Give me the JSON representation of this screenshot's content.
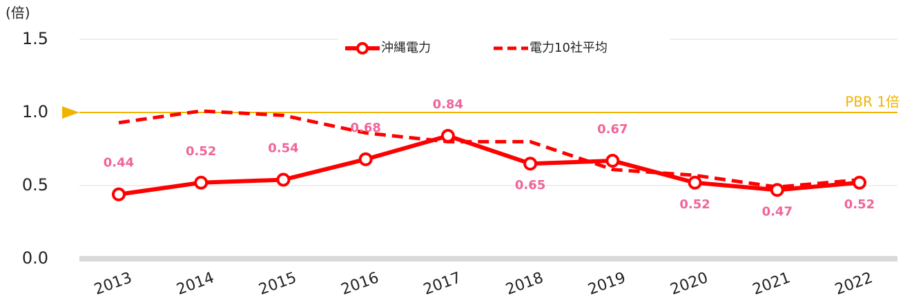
{
  "chart_data": {
    "type": "line",
    "y_unit_label": "(倍)",
    "categories": [
      "2013",
      "2014",
      "2015",
      "2016",
      "2017",
      "2018",
      "2019",
      "2020",
      "2021",
      "2022"
    ],
    "series": [
      {
        "name": "沖縄電力",
        "color": "#ff0000",
        "style": "solid",
        "markers": true,
        "values": [
          0.44,
          0.52,
          0.54,
          0.68,
          0.84,
          0.65,
          0.67,
          0.52,
          0.47,
          0.52
        ],
        "value_labels_color": "#f0649a"
      },
      {
        "name": "電力10社平均",
        "color": "#ff0000",
        "style": "dashed",
        "markers": false,
        "values": [
          0.93,
          1.01,
          0.98,
          0.86,
          0.8,
          0.8,
          0.61,
          0.57,
          0.49,
          0.54
        ]
      }
    ],
    "ylim": [
      0,
      1.5
    ],
    "yticks": [
      {
        "value": 0,
        "label": "0.0"
      },
      0.5,
      {
        "value": 1,
        "label": "1.0"
      },
      1.5
    ],
    "grid": true,
    "legend": "top",
    "reference_line": {
      "value": 1,
      "label": "PBR 1倍",
      "color": "#f0b400"
    }
  }
}
